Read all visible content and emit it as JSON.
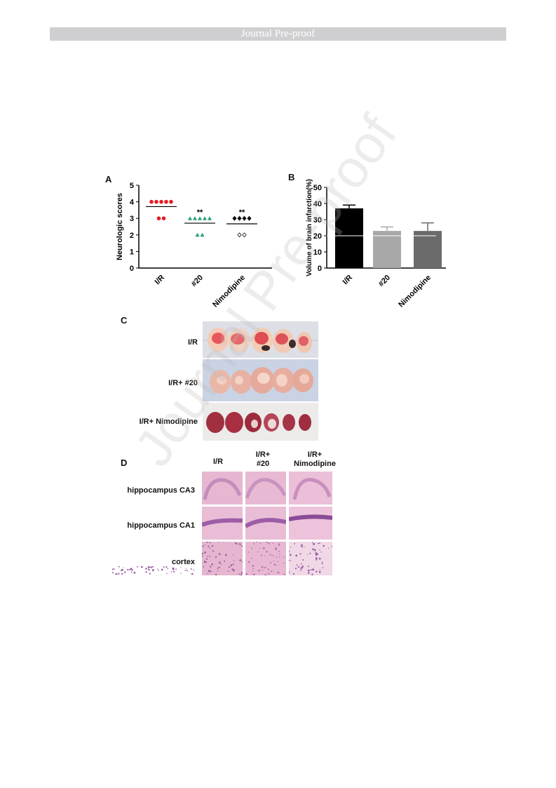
{
  "header": {
    "banner": "Journal Pre-proof"
  },
  "watermark": "Journal Pre-proof",
  "panels": {
    "a_label": "A",
    "b_label": "B",
    "c_label": "C",
    "d_label": "D"
  },
  "chart_data": [
    {
      "type": "scatter",
      "panel": "A",
      "ylabel": "Neurologic scores",
      "ylim": [
        0,
        5
      ],
      "yticks": [
        "0",
        "1",
        "2",
        "3",
        "4",
        "5"
      ],
      "categories": [
        "I/R",
        "#20",
        "Nimodipine"
      ],
      "series": [
        {
          "category": "I/R",
          "points": [
            4,
            4,
            4,
            4,
            4,
            3,
            3
          ],
          "mean": 3.71,
          "color": "#e41e24",
          "marker": "circle",
          "significance": ""
        },
        {
          "category": "#20",
          "points": [
            3,
            3,
            3,
            3,
            3,
            2,
            2
          ],
          "mean": 2.71,
          "color": "#2a9d79",
          "marker": "triangle",
          "significance": "**"
        },
        {
          "category": "Nimodipine",
          "points": [
            3,
            3,
            3,
            3,
            2,
            2
          ],
          "mean": 2.67,
          "color": "#111111",
          "marker": "diamond",
          "significance": "**"
        }
      ]
    },
    {
      "type": "bar",
      "panel": "B",
      "ylabel": "Volume of brain infarction(%)",
      "ylim": [
        0,
        50
      ],
      "yticks": [
        "0",
        "10",
        "20",
        "30",
        "40",
        "50"
      ],
      "categories": [
        "I/R",
        "#20",
        "Nimodipine"
      ],
      "values": [
        37,
        23,
        23
      ],
      "errors": [
        2,
        2.5,
        5
      ],
      "colors": [
        "#000000",
        "#a8a8a8",
        "#6b6b6b"
      ]
    }
  ],
  "figure_c": {
    "rows": [
      "I/R",
      "I/R+ #20",
      "I/R+ Nimodipine"
    ]
  },
  "figure_d": {
    "columns": [
      "I/R",
      "I/R+\n#20",
      "I/R+\nNimodipine"
    ],
    "rows": [
      "hippocampus CA3",
      "hippocampus CA1",
      "cortex"
    ]
  }
}
